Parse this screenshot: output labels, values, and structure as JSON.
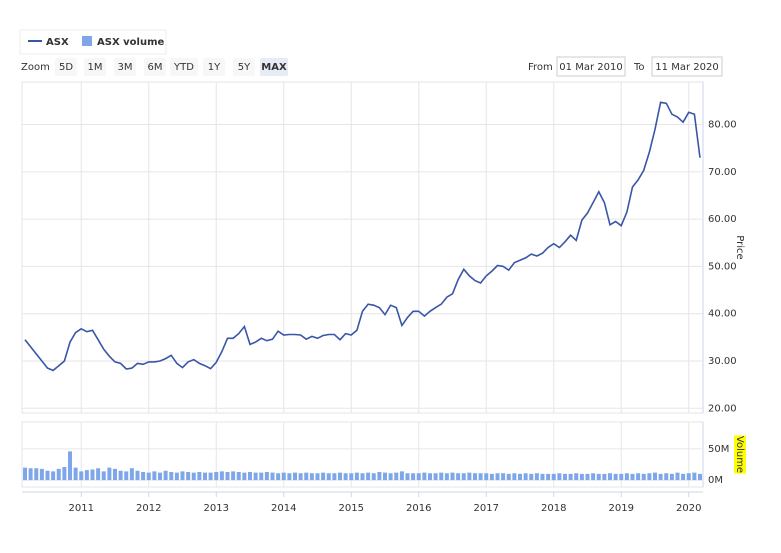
{
  "legend": {
    "items": [
      "ASX",
      "ASX volume"
    ]
  },
  "zoom": {
    "label": "Zoom",
    "buttons": [
      "5D",
      "1M",
      "3M",
      "6M",
      "YTD",
      "1Y",
      "5Y",
      "MAX"
    ],
    "selected": 7
  },
  "range": {
    "from_label": "From",
    "from": "01 Mar 2010",
    "to_label": "To",
    "to": "11 Mar 2020"
  },
  "chart_data": [
    {
      "type": "line",
      "ylabel": "Price",
      "grid": true,
      "xlim": [
        "2010-03",
        "2020-03"
      ],
      "ylim": [
        19,
        89
      ],
      "yticks": [
        {
          "value": 20,
          "label": "20.00"
        },
        {
          "value": 30,
          "label": "30.00"
        },
        {
          "value": 40,
          "label": "40.00"
        },
        {
          "value": 50,
          "label": "50.00"
        },
        {
          "value": 60,
          "label": "60.00"
        },
        {
          "value": 70,
          "label": "70.00"
        },
        {
          "value": 80,
          "label": "80.00"
        }
      ],
      "x": [
        "2010-03",
        "2010-04",
        "2010-05",
        "2010-06",
        "2010-07",
        "2010-08",
        "2010-09",
        "2010-10",
        "2010-11",
        "2010-12",
        "2011-01",
        "2011-02",
        "2011-03",
        "2011-04",
        "2011-05",
        "2011-06",
        "2011-07",
        "2011-08",
        "2011-09",
        "2011-10",
        "2011-11",
        "2011-12",
        "2012-01",
        "2012-02",
        "2012-03",
        "2012-04",
        "2012-05",
        "2012-06",
        "2012-07",
        "2012-08",
        "2012-09",
        "2012-10",
        "2012-11",
        "2012-12",
        "2013-01",
        "2013-02",
        "2013-03",
        "2013-04",
        "2013-05",
        "2013-06",
        "2013-07",
        "2013-08",
        "2013-09",
        "2013-10",
        "2013-11",
        "2013-12",
        "2014-01",
        "2014-02",
        "2014-03",
        "2014-04",
        "2014-05",
        "2014-06",
        "2014-07",
        "2014-08",
        "2014-09",
        "2014-10",
        "2014-11",
        "2014-12",
        "2015-01",
        "2015-02",
        "2015-03",
        "2015-04",
        "2015-05",
        "2015-06",
        "2015-07",
        "2015-08",
        "2015-09",
        "2015-10",
        "2015-11",
        "2015-12",
        "2016-01",
        "2016-02",
        "2016-03",
        "2016-04",
        "2016-05",
        "2016-06",
        "2016-07",
        "2016-08",
        "2016-09",
        "2016-10",
        "2016-11",
        "2016-12",
        "2017-01",
        "2017-02",
        "2017-03",
        "2017-04",
        "2017-05",
        "2017-06",
        "2017-07",
        "2017-08",
        "2017-09",
        "2017-10",
        "2017-11",
        "2017-12",
        "2018-01",
        "2018-02",
        "2018-03",
        "2018-04",
        "2018-05",
        "2018-06",
        "2018-07",
        "2018-08",
        "2018-09",
        "2018-10",
        "2018-11",
        "2018-12",
        "2019-01",
        "2019-02",
        "2019-03",
        "2019-04",
        "2019-05",
        "2019-06",
        "2019-07",
        "2019-08",
        "2019-09",
        "2019-10",
        "2019-11",
        "2019-12",
        "2020-01",
        "2020-02",
        "2020-03"
      ],
      "series": [
        {
          "name": "ASX",
          "color": "#3a56a6",
          "values": [
            34.5,
            33,
            31.5,
            30,
            28.5,
            28,
            29,
            30,
            34,
            36,
            36.8,
            36.2,
            36.5,
            34.5,
            32.5,
            31,
            29.8,
            29.5,
            28.3,
            28.5,
            29.5,
            29.3,
            29.8,
            29.8,
            30,
            30.5,
            31.2,
            29.5,
            28.6,
            29.8,
            30.3,
            29.5,
            29,
            28.4,
            29.7,
            32,
            34.8,
            34.8,
            35.8,
            37.3,
            33.5,
            34,
            34.8,
            34.3,
            34.6,
            36.3,
            35.5,
            35.6,
            35.6,
            35.5,
            34.6,
            35.2,
            34.8,
            35.4,
            35.6,
            35.6,
            34.5,
            35.8,
            35.5,
            36.5,
            40.5,
            42,
            41.8,
            41.3,
            39.8,
            41.8,
            41.3,
            37.5,
            39.2,
            40.5,
            40.5,
            39.5,
            40.5,
            41.3,
            42,
            43.5,
            44.2,
            47.2,
            49.4,
            48,
            47,
            46.5,
            48,
            49,
            50.2,
            50,
            49.2,
            50.8,
            51.3,
            51.8,
            52.6,
            52.2,
            52.8,
            54,
            54.8,
            54,
            55.2,
            56.6,
            55.5,
            59.8,
            61.3,
            63.5,
            65.8,
            63.5,
            58.8,
            59.5,
            58.6,
            61.5,
            66.8,
            68.3,
            70.3,
            74.2,
            79,
            84.7,
            84.5,
            82.2,
            81.6,
            80.5,
            82.6,
            82.2,
            73
          ]
        }
      ]
    },
    {
      "type": "bar",
      "ylabel": "Volume",
      "grid": true,
      "xlim": [
        "2010-03",
        "2020-03"
      ],
      "ylim": [
        -11000000,
        93000000
      ],
      "yticks": [
        {
          "value": 0,
          "label": "0M"
        },
        {
          "value": 50000000,
          "label": "50M"
        }
      ],
      "xticks": [
        "2011",
        "2012",
        "2013",
        "2014",
        "2015",
        "2016",
        "2017",
        "2018",
        "2019",
        "2020"
      ],
      "x": [
        "2010-03",
        "2010-04",
        "2010-05",
        "2010-06",
        "2010-07",
        "2010-08",
        "2010-09",
        "2010-10",
        "2010-11",
        "2010-12",
        "2011-01",
        "2011-02",
        "2011-03",
        "2011-04",
        "2011-05",
        "2011-06",
        "2011-07",
        "2011-08",
        "2011-09",
        "2011-10",
        "2011-11",
        "2011-12",
        "2012-01",
        "2012-02",
        "2012-03",
        "2012-04",
        "2012-05",
        "2012-06",
        "2012-07",
        "2012-08",
        "2012-09",
        "2012-10",
        "2012-11",
        "2012-12",
        "2013-01",
        "2013-02",
        "2013-03",
        "2013-04",
        "2013-05",
        "2013-06",
        "2013-07",
        "2013-08",
        "2013-09",
        "2013-10",
        "2013-11",
        "2013-12",
        "2014-01",
        "2014-02",
        "2014-03",
        "2014-04",
        "2014-05",
        "2014-06",
        "2014-07",
        "2014-08",
        "2014-09",
        "2014-10",
        "2014-11",
        "2014-12",
        "2015-01",
        "2015-02",
        "2015-03",
        "2015-04",
        "2015-05",
        "2015-06",
        "2015-07",
        "2015-08",
        "2015-09",
        "2015-10",
        "2015-11",
        "2015-12",
        "2016-01",
        "2016-02",
        "2016-03",
        "2016-04",
        "2016-05",
        "2016-06",
        "2016-07",
        "2016-08",
        "2016-09",
        "2016-10",
        "2016-11",
        "2016-12",
        "2017-01",
        "2017-02",
        "2017-03",
        "2017-04",
        "2017-05",
        "2017-06",
        "2017-07",
        "2017-08",
        "2017-09",
        "2017-10",
        "2017-11",
        "2017-12",
        "2018-01",
        "2018-02",
        "2018-03",
        "2018-04",
        "2018-05",
        "2018-06",
        "2018-07",
        "2018-08",
        "2018-09",
        "2018-10",
        "2018-11",
        "2018-12",
        "2019-01",
        "2019-02",
        "2019-03",
        "2019-04",
        "2019-05",
        "2019-06",
        "2019-07",
        "2019-08",
        "2019-09",
        "2019-10",
        "2019-11",
        "2019-12",
        "2020-01",
        "2020-02",
        "2020-03"
      ],
      "series": [
        {
          "name": "ASX volume",
          "color": "#7ea6e8",
          "values": [
            20000000.0,
            19000000.0,
            19000000.0,
            18000000.0,
            15000000.0,
            14000000.0,
            18000000.0,
            21000000.0,
            46000000.0,
            20000000.0,
            14000000.0,
            16000000.0,
            17000000.0,
            19000000.0,
            14000000.0,
            20000000.0,
            18000000.0,
            15000000.0,
            14000000.0,
            19000000.0,
            15000000.0,
            13000000.0,
            12000000.0,
            14000000.0,
            12000000.0,
            15000000.0,
            13000000.0,
            12000000.0,
            14000000.0,
            13000000.0,
            12000000.0,
            13000000.0,
            12000000.0,
            12000000.0,
            13000000.0,
            14000000.0,
            13000000.0,
            14000000.0,
            13000000.0,
            12000000.0,
            13000000.0,
            12000000.0,
            12000000.0,
            13000000.0,
            12000000.0,
            11000000.0,
            12000000.0,
            11000000.0,
            12000000.0,
            11000000.0,
            12000000.0,
            11000000.0,
            11000000.0,
            12000000.0,
            11000000.0,
            11000000.0,
            12000000.0,
            11000000.0,
            11000000.0,
            12000000.0,
            11000000.0,
            12000000.0,
            11000000.0,
            13000000.0,
            12000000.0,
            11000000.0,
            12000000.0,
            14000000.0,
            11000000.0,
            11000000.0,
            11000000.0,
            12000000.0,
            11000000.0,
            11000000.0,
            12000000.0,
            11000000.0,
            12000000.0,
            11000000.0,
            11000000.0,
            12000000.0,
            11000000.0,
            11000000.0,
            11000000.0,
            10000000.0,
            11000000.0,
            11000000.0,
            10000000.0,
            11000000.0,
            10000000.0,
            11000000.0,
            10000000.0,
            11000000.0,
            10000000.0,
            10000000.0,
            10000000.0,
            11000000.0,
            10000000.0,
            10000000.0,
            11000000.0,
            10000000.0,
            10000000.0,
            11000000.0,
            10000000.0,
            10000000.0,
            11000000.0,
            10000000.0,
            10000000.0,
            11000000.0,
            10000000.0,
            11000000.0,
            10000000.0,
            11000000.0,
            12000000.0,
            10000000.0,
            11000000.0,
            10000000.0,
            12000000.0,
            10000000.0,
            11000000.0,
            12000000.0,
            10000000.0
          ]
        }
      ]
    }
  ]
}
